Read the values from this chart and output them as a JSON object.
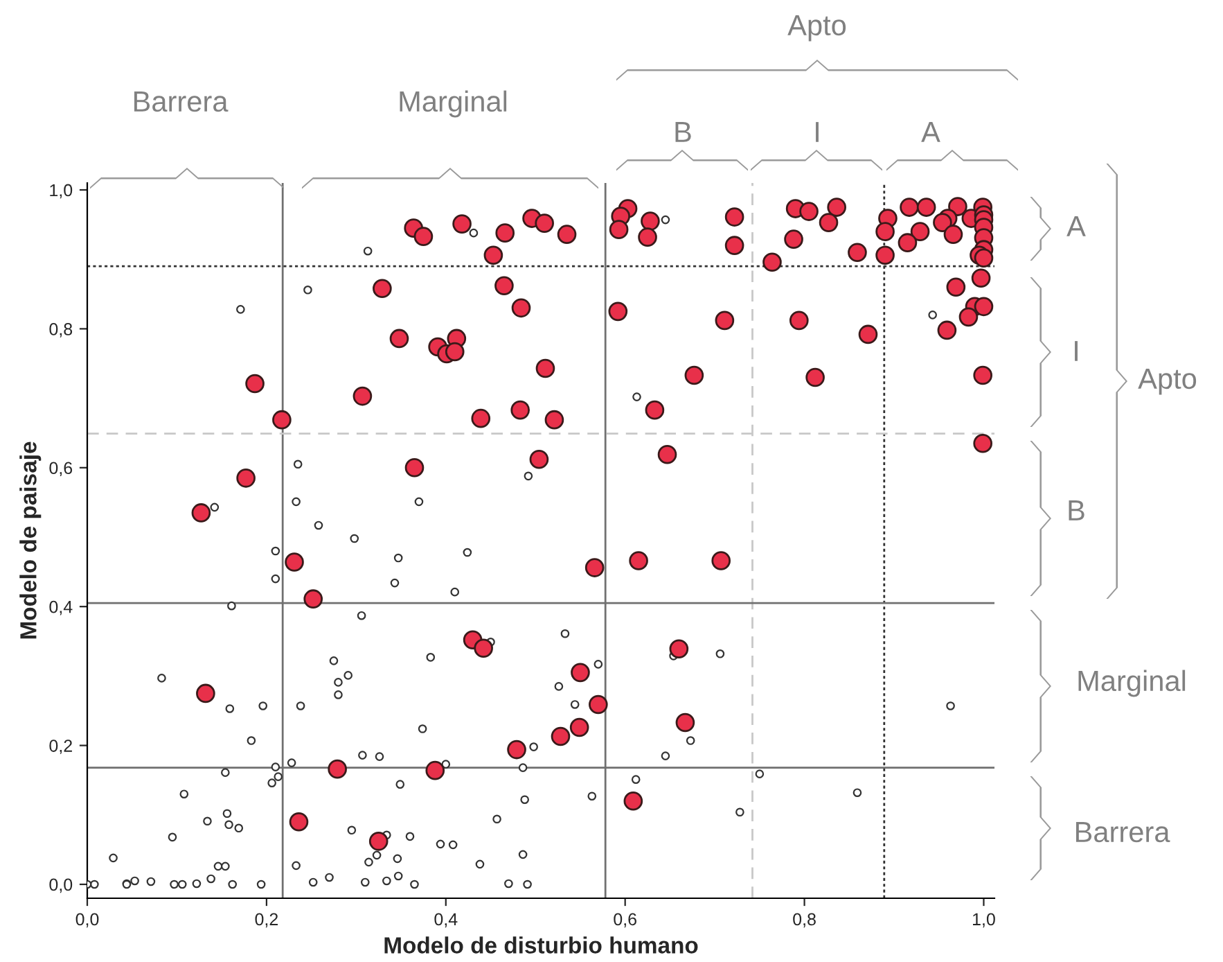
{
  "chart_data": {
    "type": "scatter",
    "xlabel": "Modelo de disturbio humano",
    "ylabel": "Modelo de paisaje",
    "xlim": [
      0,
      1.012
    ],
    "ylim": [
      -0.02,
      1.01
    ],
    "xticks": [
      {
        "value": 0,
        "label": "0,0"
      },
      {
        "value": 0.2,
        "label": "0,2"
      },
      {
        "value": 0.4,
        "label": "0,4"
      },
      {
        "value": 0.6,
        "label": "0,6"
      },
      {
        "value": 0.8,
        "label": "0,8"
      },
      {
        "value": 1.0,
        "label": "1,0"
      }
    ],
    "yticks": [
      {
        "value": 0,
        "label": "0,0"
      },
      {
        "value": 0.2,
        "label": "0,2"
      },
      {
        "value": 0.4,
        "label": "0,4"
      },
      {
        "value": 0.6,
        "label": "0,6"
      },
      {
        "value": 0.8,
        "label": "0,8"
      },
      {
        "value": 1.0,
        "label": "1,0"
      }
    ],
    "grid": false,
    "legend": false,
    "marker": "circle",
    "series": [
      {
        "color": "#ffffff",
        "x": [
          0.313,
          0.246,
          0.171,
          0.431,
          0.235,
          0.492,
          0.142,
          0.233,
          0.37,
          0.258,
          0.645,
          0.943,
          0.613,
          0.298,
          0.21,
          0.21,
          0.347,
          0.343,
          0.424,
          0.41,
          0.161,
          0.306,
          0.275,
          0.291,
          0.28,
          0.28,
          0.383,
          0.45,
          0.083,
          0.159,
          0.196,
          0.238,
          0.183,
          0.374,
          0.307,
          0.326,
          0.498,
          0.486,
          0.21,
          0.228,
          0.213,
          0.206,
          0.154,
          0.108,
          0.349,
          0.488,
          0.156,
          0.134,
          0.158,
          0.169,
          0.095,
          0.295,
          0.334,
          0.36,
          0.394,
          0.408,
          0.457,
          0.323,
          0.314,
          0.346,
          0.347,
          0.438,
          0.486,
          0.029,
          0.146,
          0.154,
          0.138,
          0.122,
          0.071,
          0.053,
          0.044,
          0.044,
          0.008,
          0.0,
          0.097,
          0.106,
          0.162,
          0.194,
          0.233,
          0.252,
          0.27,
          0.31,
          0.334,
          0.365,
          0.47,
          0.491,
          0.4,
          0.533,
          0.57,
          0.526,
          0.544,
          0.654,
          0.706,
          0.673,
          0.645,
          0.612,
          0.563,
          0.75,
          0.859,
          0.728,
          0.963
        ],
        "values": [
          0.912,
          0.856,
          0.828,
          0.938,
          0.605,
          0.588,
          0.543,
          0.551,
          0.551,
          0.517,
          0.957,
          0.82,
          0.702,
          0.498,
          0.48,
          0.44,
          0.47,
          0.434,
          0.478,
          0.421,
          0.401,
          0.387,
          0.322,
          0.301,
          0.291,
          0.273,
          0.327,
          0.349,
          0.297,
          0.253,
          0.257,
          0.257,
          0.207,
          0.224,
          0.186,
          0.184,
          0.198,
          0.168,
          0.169,
          0.175,
          0.155,
          0.146,
          0.161,
          0.13,
          0.144,
          0.122,
          0.102,
          0.091,
          0.086,
          0.081,
          0.068,
          0.078,
          0.071,
          0.069,
          0.058,
          0.057,
          0.094,
          0.042,
          0.032,
          0.037,
          0.012,
          0.029,
          0.043,
          0.038,
          0.026,
          0.026,
          0.008,
          0.001,
          0.004,
          0.005,
          0.001,
          0.0,
          0.0,
          0.0,
          0.0,
          0.0,
          0.0,
          0.0,
          0.027,
          0.003,
          0.01,
          0.003,
          0.005,
          0.0,
          0.001,
          0.0,
          0.173,
          0.361,
          0.317,
          0.285,
          0.259,
          0.329,
          0.332,
          0.207,
          0.185,
          0.151,
          0.127,
          0.159,
          0.132,
          0.104,
          0.257
        ]
      },
      {
        "color": "#e8304a",
        "x": [
          0.364,
          0.375,
          0.418,
          0.466,
          0.453,
          0.496,
          0.51,
          0.535,
          0.329,
          0.465,
          0.484,
          0.348,
          0.391,
          0.412,
          0.401,
          0.41,
          0.187,
          0.307,
          0.439,
          0.483,
          0.511,
          0.217,
          0.365,
          0.504,
          0.177,
          0.127,
          0.521,
          0.603,
          0.595,
          0.593,
          0.628,
          0.625,
          0.722,
          0.722,
          0.764,
          0.79,
          0.805,
          0.836,
          0.827,
          0.788,
          0.859,
          0.893,
          0.89,
          0.89,
          0.917,
          0.936,
          0.971,
          0.929,
          0.915,
          0.96,
          0.954,
          0.966,
          0.986,
          0.999,
          1.0,
          1.0,
          1.0,
          1.0,
          1.0,
          0.995,
          1.0,
          0.997,
          0.969,
          0.99,
          1.0,
          0.983,
          0.959,
          0.999,
          0.999,
          0.592,
          0.711,
          0.794,
          0.871,
          0.677,
          0.812,
          0.633,
          0.647,
          0.231,
          0.252,
          0.132,
          0.43,
          0.442,
          0.479,
          0.279,
          0.388,
          0.236,
          0.325,
          0.566,
          0.615,
          0.707,
          0.66,
          0.55,
          0.57,
          0.549,
          0.528,
          0.667,
          0.609
        ],
        "values": [
          0.945,
          0.933,
          0.951,
          0.938,
          0.906,
          0.959,
          0.952,
          0.936,
          0.858,
          0.862,
          0.83,
          0.786,
          0.774,
          0.786,
          0.764,
          0.767,
          0.721,
          0.703,
          0.671,
          0.683,
          0.743,
          0.669,
          0.6,
          0.612,
          0.585,
          0.535,
          0.669,
          0.973,
          0.962,
          0.943,
          0.955,
          0.932,
          0.961,
          0.92,
          0.896,
          0.973,
          0.969,
          0.975,
          0.953,
          0.929,
          0.91,
          0.959,
          0.94,
          0.906,
          0.975,
          0.975,
          0.976,
          0.94,
          0.924,
          0.959,
          0.953,
          0.936,
          0.959,
          0.975,
          0.964,
          0.957,
          0.946,
          0.931,
          0.914,
          0.906,
          0.902,
          0.873,
          0.86,
          0.832,
          0.832,
          0.817,
          0.798,
          0.733,
          0.635,
          0.825,
          0.812,
          0.812,
          0.792,
          0.733,
          0.73,
          0.683,
          0.619,
          0.464,
          0.411,
          0.275,
          0.352,
          0.34,
          0.194,
          0.166,
          0.164,
          0.09,
          0.062,
          0.456,
          0.466,
          0.466,
          0.339,
          0.305,
          0.259,
          0.226,
          0.213,
          0.233,
          0.12
        ]
      }
    ],
    "ref_lines": [
      {
        "axis": "x",
        "value": 0.218,
        "color": "#707070",
        "line_style": "solid"
      },
      {
        "axis": "x",
        "value": 0.578,
        "color": "#707070",
        "line_style": "solid"
      },
      {
        "axis": "x",
        "value": 0.742,
        "color": "#c8c8c8",
        "line_style": "dashed"
      },
      {
        "axis": "x",
        "value": 0.889,
        "color": "#333333",
        "line_style": "dotted"
      },
      {
        "axis": "y",
        "value": 0.89,
        "color": "#333333",
        "line_style": "dotted"
      },
      {
        "axis": "y",
        "value": 0.649,
        "color": "#c8c8c8",
        "line_style": "dashed"
      },
      {
        "axis": "y",
        "value": 0.405,
        "color": "#707070",
        "line_style": "solid"
      },
      {
        "axis": "y",
        "value": 0.168,
        "color": "#707070",
        "line_style": "solid"
      }
    ],
    "annotations": [
      "Barrera",
      "Marginal",
      "Apto",
      "B",
      "I",
      "A",
      "A",
      "I",
      "B",
      "Apto",
      "Marginal",
      "Barrera"
    ]
  }
}
